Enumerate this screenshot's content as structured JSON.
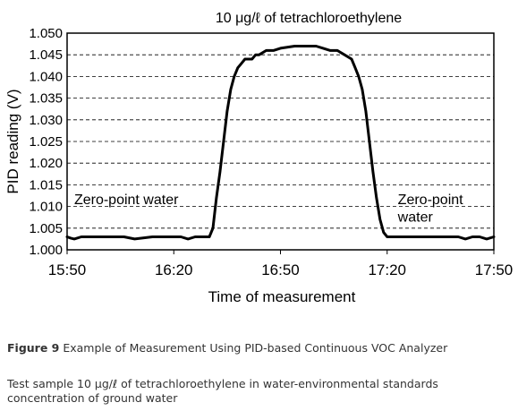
{
  "chart_data": {
    "type": "line",
    "title": "10 μg/ℓ of tetrachloroethylene",
    "xlabel": "Time of measurement",
    "ylabel": "PID reading (V)",
    "xlim": [
      0,
      120
    ],
    "ylim": [
      1.0,
      1.05
    ],
    "x_ticks": [
      0,
      30,
      60,
      90,
      120
    ],
    "x_tick_labels": [
      "15:50",
      "16:20",
      "16:50",
      "17:20",
      "17:50"
    ],
    "y_ticks": [
      1.0,
      1.005,
      1.01,
      1.015,
      1.02,
      1.025,
      1.03,
      1.035,
      1.04,
      1.045,
      1.05
    ],
    "y_tick_labels": [
      "1.000",
      "1.005",
      "1.010",
      "1.015",
      "1.020",
      "1.025",
      "1.030",
      "1.035",
      "1.040",
      "1.045",
      "1.050"
    ],
    "grid": "horizontal dashed",
    "series": [
      {
        "x": [
          0,
          1,
          2,
          4,
          6,
          8,
          12,
          14,
          16,
          19,
          24,
          27,
          29,
          32,
          34,
          36,
          38,
          40,
          41,
          42,
          43,
          44,
          45,
          46,
          47,
          48,
          49,
          50,
          51,
          52,
          53,
          54,
          56,
          58,
          60,
          64,
          68,
          70,
          72,
          74,
          76,
          78,
          80,
          81,
          82,
          83,
          84,
          85,
          86,
          87,
          88,
          89,
          90,
          91,
          92,
          94,
          96,
          98,
          100,
          102,
          104,
          106,
          108,
          110,
          112,
          114,
          116,
          118,
          120
        ],
        "y": [
          1.003,
          1.0027,
          1.0025,
          1.003,
          1.003,
          1.003,
          1.003,
          1.003,
          1.003,
          1.0025,
          1.003,
          1.003,
          1.003,
          1.003,
          1.0025,
          1.003,
          1.003,
          1.003,
          1.005,
          1.012,
          1.018,
          1.025,
          1.032,
          1.037,
          1.04,
          1.042,
          1.043,
          1.044,
          1.044,
          1.044,
          1.045,
          1.045,
          1.046,
          1.046,
          1.0465,
          1.047,
          1.047,
          1.047,
          1.0465,
          1.046,
          1.046,
          1.045,
          1.044,
          1.042,
          1.04,
          1.037,
          1.032,
          1.025,
          1.018,
          1.012,
          1.007,
          1.004,
          1.003,
          1.003,
          1.003,
          1.003,
          1.003,
          1.003,
          1.003,
          1.003,
          1.003,
          1.003,
          1.003,
          1.003,
          1.0025,
          1.003,
          1.003,
          1.0025,
          1.003
        ]
      }
    ],
    "annotations": [
      {
        "text": "Zero-point water",
        "x": 2,
        "y": 1.0105
      },
      {
        "text": "Zero-point",
        "x": 93,
        "y": 1.0105
      },
      {
        "text": "water",
        "x": 93,
        "y": 1.0065
      }
    ]
  },
  "figure_caption": {
    "label": "Figure 9",
    "text": " Example of Measurement Using PID-based Continuous VOC Analyzer"
  },
  "note": "Test sample 10 μg/ℓ of tetrachloroethylene in water-environmental standards concentration of ground water"
}
